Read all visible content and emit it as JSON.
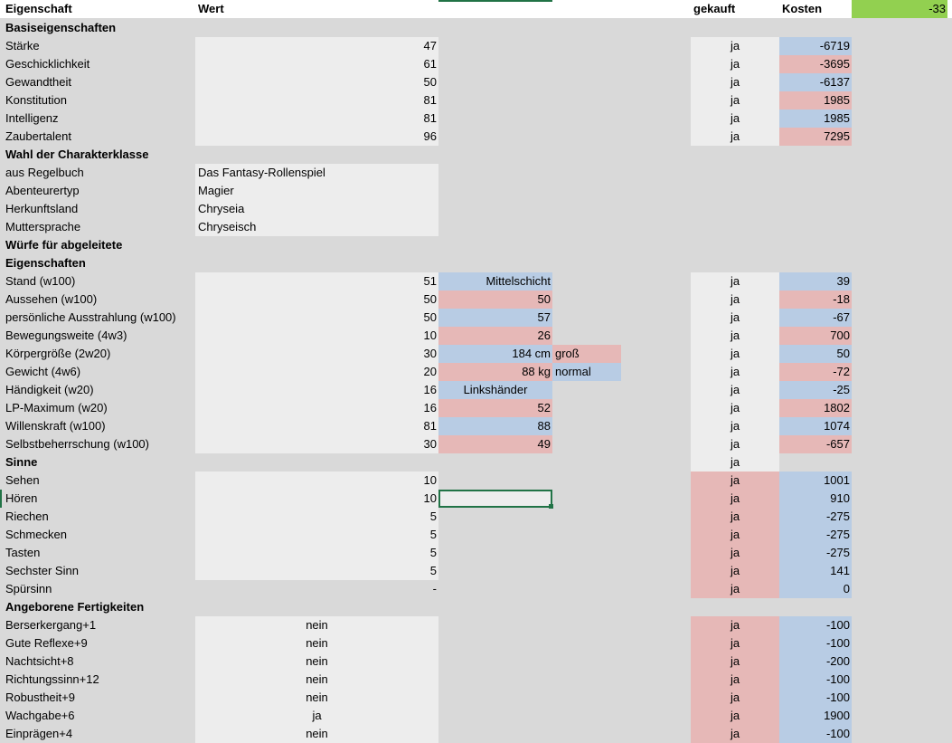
{
  "header": {
    "eigenschaft": "Eigenschaft",
    "wert": "Wert",
    "gekauft": "gekauft",
    "kosten": "Kosten",
    "total": "-33",
    "total_color": "#92d050"
  },
  "colors": {
    "blue": "#b8cce4",
    "red": "#e6b8b7",
    "light": "#ededed",
    "bg": "#d9d9d9",
    "selection": "#217346"
  },
  "rows": [
    {
      "section": "Basiseigenschaften"
    },
    {
      "name": "Stärke",
      "wert": "47",
      "wa": "right",
      "wb": "light",
      "gekauft": "ja",
      "gb": "light",
      "kosten": "-6719",
      "kb": "blue"
    },
    {
      "name": "Geschicklichkeit",
      "wert": "61",
      "wa": "right",
      "wb": "light",
      "gekauft": "ja",
      "gb": "light",
      "kosten": "-3695",
      "kb": "red"
    },
    {
      "name": "Gewandtheit",
      "wert": "50",
      "wa": "right",
      "wb": "light",
      "gekauft": "ja",
      "gb": "light",
      "kosten": "-6137",
      "kb": "blue"
    },
    {
      "name": "Konstitution",
      "wert": "81",
      "wa": "right",
      "wb": "light",
      "gekauft": "ja",
      "gb": "light",
      "kosten": "1985",
      "kb": "red"
    },
    {
      "name": "Intelligenz",
      "wert": "81",
      "wa": "right",
      "wb": "light",
      "gekauft": "ja",
      "gb": "light",
      "kosten": "1985",
      "kb": "blue"
    },
    {
      "name": "Zaubertalent",
      "wert": "96",
      "wa": "right",
      "wb": "light",
      "gekauft": "ja",
      "gb": "light",
      "kosten": "7295",
      "kb": "red"
    },
    {
      "section": "Wahl der Charakterklasse"
    },
    {
      "name": "aus Regelbuch",
      "wert": "Das Fantasy-Rollenspiel",
      "wa": "left",
      "wb": "light"
    },
    {
      "name": "Abenteurertyp",
      "wert": "Magier",
      "wa": "left",
      "wb": "light"
    },
    {
      "name": "Herkunftsland",
      "wert": "Chryseia",
      "wa": "left",
      "wb": "light"
    },
    {
      "name": "Muttersprache",
      "wert": "Chryseisch",
      "wa": "left",
      "wb": "light"
    },
    {
      "section": "Würfe für abgeleitete"
    },
    {
      "section": "Eigenschaften"
    },
    {
      "name": "Stand (w100)",
      "wert": "51",
      "wa": "right",
      "wb": "light",
      "sub": "Mittelschicht",
      "sb": "blue",
      "gekauft": "ja",
      "gb": "light",
      "kosten": "39",
      "kb": "blue"
    },
    {
      "name": "Aussehen (w100)",
      "wert": "50",
      "wa": "right",
      "wb": "light",
      "sub": "50",
      "sb": "red",
      "gekauft": "ja",
      "gb": "light",
      "kosten": "-18",
      "kb": "red"
    },
    {
      "name": "persönliche Ausstrahlung (w100)",
      "wert": "50",
      "wa": "right",
      "wb": "light",
      "sub": "57",
      "sb": "blue",
      "gekauft": "ja",
      "gb": "light",
      "kosten": "-67",
      "kb": "blue"
    },
    {
      "name": "Bewegungsweite (4w3)",
      "wert": "10",
      "wa": "right",
      "wb": "light",
      "sub": "26",
      "sb": "red",
      "gekauft": "ja",
      "gb": "light",
      "kosten": "700",
      "kb": "red"
    },
    {
      "name": "Körpergröße (2w20)",
      "wert": "30",
      "wa": "right",
      "wb": "light",
      "sub": "184 cm",
      "sb": "blue",
      "extra": "groß",
      "eb": "red",
      "gekauft": "ja",
      "gb": "light",
      "kosten": "50",
      "kb": "blue"
    },
    {
      "name": "Gewicht (4w6)",
      "wert": "20",
      "wa": "right",
      "wb": "light",
      "sub": "88 kg",
      "sb": "red",
      "extra": "normal",
      "eb": "blue",
      "gekauft": "ja",
      "gb": "light",
      "kosten": "-72",
      "kb": "red"
    },
    {
      "name": "Händigkeit (w20)",
      "wert": "16",
      "wa": "right",
      "wb": "light",
      "sub": "Linkshänder",
      "sb": "blue",
      "sa": "center",
      "gekauft": "ja",
      "gb": "light",
      "kosten": "-25",
      "kb": "blue"
    },
    {
      "name": "LP-Maximum (w20)",
      "wert": "16",
      "wa": "right",
      "wb": "light",
      "sub": "52",
      "sb": "red",
      "gekauft": "ja",
      "gb": "light",
      "kosten": "1802",
      "kb": "red"
    },
    {
      "name": "Willenskraft (w100)",
      "wert": "81",
      "wa": "right",
      "wb": "light",
      "sub": "88",
      "sb": "blue",
      "gekauft": "ja",
      "gb": "light",
      "kosten": "1074",
      "kb": "blue"
    },
    {
      "name": "Selbstbeherrschung (w100)",
      "wert": "30",
      "wa": "right",
      "wb": "light",
      "sub": "49",
      "sb": "red",
      "gekauft": "ja",
      "gb": "light",
      "kosten": "-657",
      "kb": "red"
    },
    {
      "section": "Sinne",
      "gekauft": "ja",
      "gb": "light"
    },
    {
      "name": "Sehen",
      "wert": "10",
      "wa": "right",
      "wb": "light",
      "gekauft": "ja",
      "gb": "red",
      "kosten": "1001",
      "kb": "blue"
    },
    {
      "name": "Hören",
      "wert": "10",
      "wa": "right",
      "wb": "light",
      "selected": true,
      "gekauft": "ja",
      "gb": "red",
      "kosten": "910",
      "kb": "blue"
    },
    {
      "name": "Riechen",
      "wert": "5",
      "wa": "right",
      "wb": "light",
      "gekauft": "ja",
      "gb": "red",
      "kosten": "-275",
      "kb": "blue"
    },
    {
      "name": "Schmecken",
      "wert": "5",
      "wa": "right",
      "wb": "light",
      "gekauft": "ja",
      "gb": "red",
      "kosten": "-275",
      "kb": "blue"
    },
    {
      "name": "Tasten",
      "wert": "5",
      "wa": "right",
      "wb": "light",
      "gekauft": "ja",
      "gb": "red",
      "kosten": "-275",
      "kb": "blue"
    },
    {
      "name": "Sechster Sinn",
      "wert": "5",
      "wa": "right",
      "wb": "light",
      "gekauft": "ja",
      "gb": "red",
      "kosten": "141",
      "kb": "blue"
    },
    {
      "name": "Spürsinn",
      "wert": "-",
      "wa": "right",
      "wb": "",
      "gekauft": "ja",
      "gb": "red",
      "kosten": "0",
      "kb": "blue"
    },
    {
      "section": "Angeborene Fertigkeiten"
    },
    {
      "name": "Berserkergang+1",
      "wert": "nein",
      "wa": "center",
      "wb": "light",
      "gekauft": "ja",
      "gb": "red",
      "kosten": "-100",
      "kb": "blue"
    },
    {
      "name": "Gute Reflexe+9",
      "wert": "nein",
      "wa": "center",
      "wb": "light",
      "gekauft": "ja",
      "gb": "red",
      "kosten": "-100",
      "kb": "blue"
    },
    {
      "name": "Nachtsicht+8",
      "wert": "nein",
      "wa": "center",
      "wb": "light",
      "gekauft": "ja",
      "gb": "red",
      "kosten": "-200",
      "kb": "blue"
    },
    {
      "name": "Richtungssinn+12",
      "wert": "nein",
      "wa": "center",
      "wb": "light",
      "gekauft": "ja",
      "gb": "red",
      "kosten": "-100",
      "kb": "blue"
    },
    {
      "name": "Robustheit+9",
      "wert": "nein",
      "wa": "center",
      "wb": "light",
      "gekauft": "ja",
      "gb": "red",
      "kosten": "-100",
      "kb": "blue"
    },
    {
      "name": "Wachgabe+6",
      "wert": "ja",
      "wa": "center",
      "wb": "light",
      "gekauft": "ja",
      "gb": "red",
      "kosten": "1900",
      "kb": "blue"
    },
    {
      "name": "Einprägen+4",
      "wert": "nein",
      "wa": "center",
      "wb": "light",
      "gekauft": "ja",
      "gb": "red",
      "kosten": "-100",
      "kb": "blue"
    }
  ]
}
